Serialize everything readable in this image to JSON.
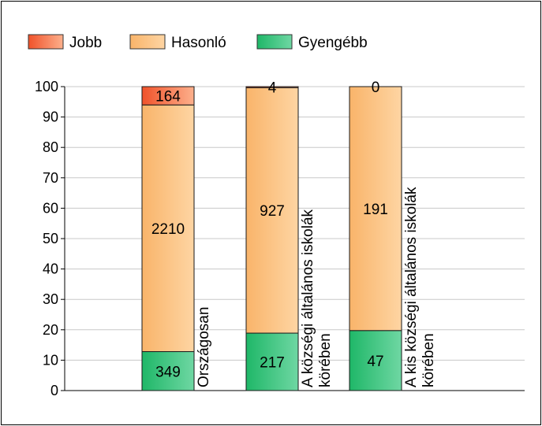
{
  "chart_data": {
    "type": "bar",
    "stacked": true,
    "normalized": true,
    "categories": [
      "Országosan",
      "A községi általános iskolák körében",
      "A kis községi általános iskolák körében"
    ],
    "category_label_lines": [
      [
        "Országosan"
      ],
      [
        "A községi általános iskolák",
        "körében"
      ],
      [
        "A kis községi általános iskolák",
        "körében"
      ]
    ],
    "series": [
      {
        "name": "Gyengébb",
        "values": [
          349,
          217,
          47
        ]
      },
      {
        "name": "Hasonló",
        "values": [
          2210,
          927,
          191
        ]
      },
      {
        "name": "Jobb",
        "values": [
          164,
          4,
          0
        ]
      }
    ],
    "legend_order": [
      "Jobb",
      "Hasonló",
      "Gyengébb"
    ],
    "legend_position": "top-left",
    "ylim": [
      0,
      100
    ],
    "yticks": [
      0,
      10,
      20,
      30,
      40,
      50,
      60,
      70,
      80,
      90,
      100
    ],
    "grid": true,
    "colors": {
      "Jobb": [
        "#f0522a",
        "#fdb08c"
      ],
      "Hasonló": [
        "#f9b46a",
        "#fed5a3"
      ],
      "Gyengébb": [
        "#1fb768",
        "#6fd7a3"
      ]
    }
  }
}
